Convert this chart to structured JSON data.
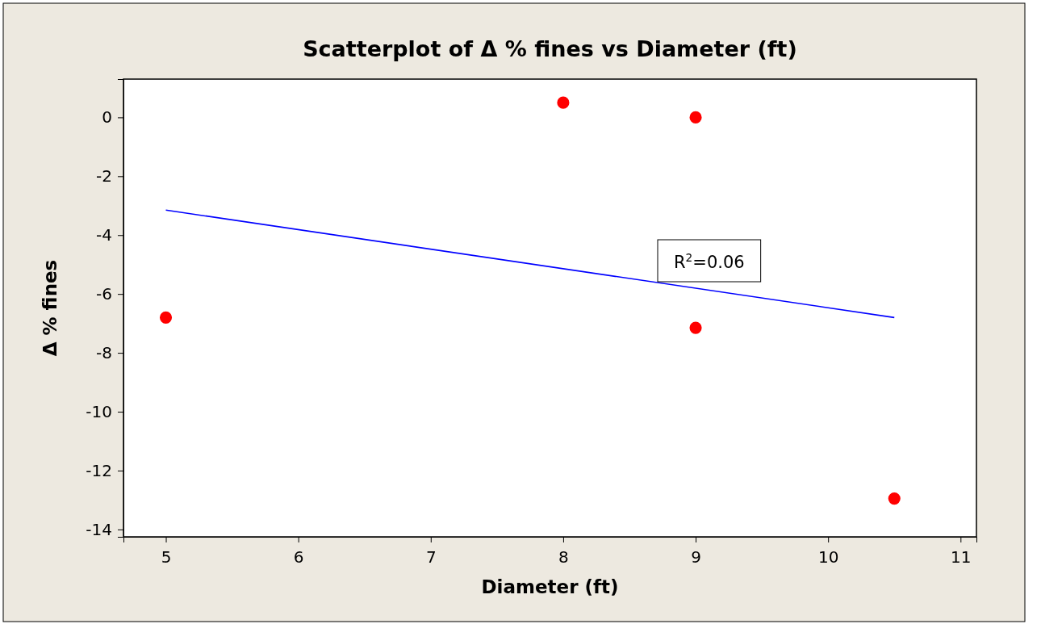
{
  "chart_data": {
    "type": "scatter",
    "title": "Scatterplot of Δ % fines vs Diameter (ft)",
    "xlabel": "Diameter (ft)",
    "ylabel": "Δ % fines",
    "xlim": [
      4.68,
      11.12
    ],
    "ylim": [
      -14.25,
      1.3
    ],
    "xticks": [
      5,
      6,
      7,
      8,
      9,
      10,
      11
    ],
    "yticks": [
      0,
      -2,
      -4,
      -6,
      -8,
      -10,
      -12,
      -14
    ],
    "grid": false,
    "series": [
      {
        "marker": "circle",
        "color": "#ff0000",
        "x": [
          5,
          8,
          9,
          9,
          10.5
        ],
        "values": [
          -6.8,
          0.5,
          0,
          -7.15,
          -12.95
        ]
      },
      {
        "type": "line",
        "color": "#0000ff",
        "x": [
          5,
          10.5
        ],
        "values": [
          -3.15,
          -6.8
        ]
      }
    ],
    "annotations": [
      "R$^{2}$=0.06"
    ]
  }
}
